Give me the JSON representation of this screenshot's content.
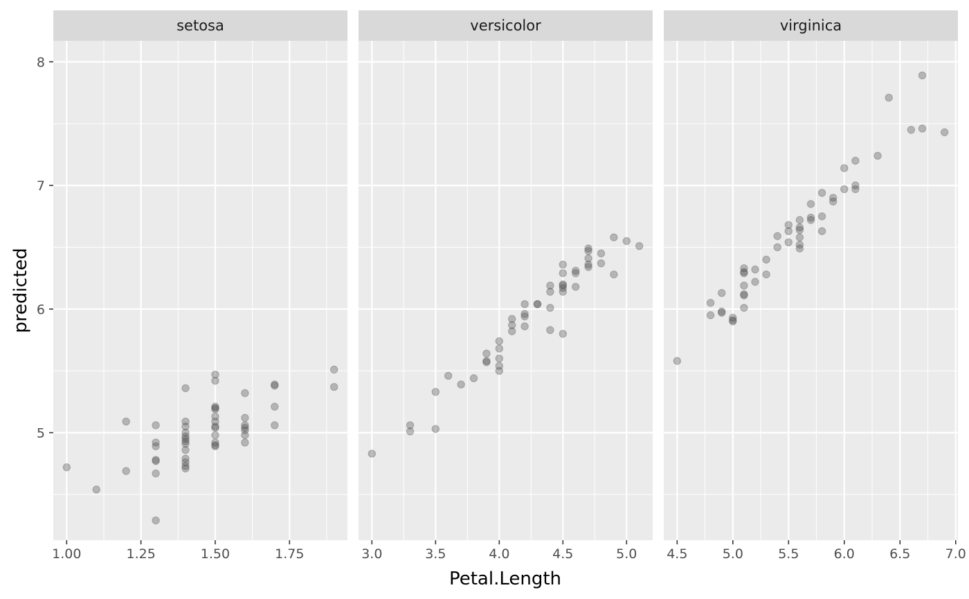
{
  "chart_data": {
    "type": "scatter",
    "xlabel": "Petal.Length",
    "ylabel": "predicted",
    "ylim": [
      4.13,
      8.17
    ],
    "y_ticks": [
      5,
      6,
      7,
      8
    ],
    "y_tick_labels": [
      "5",
      "6",
      "7",
      "8"
    ],
    "grid": true,
    "point_color": "#4d4d4d",
    "point_alpha": 0.35,
    "panel_background": "#ebebeb",
    "strip_background": "#d9d9d9",
    "panels": [
      {
        "name": "setosa",
        "xlim": [
          0.955,
          1.945
        ],
        "x_ticks": [
          1.0,
          1.25,
          1.5,
          1.75
        ],
        "x_tick_labels": [
          "1.00",
          "1.25",
          "1.50",
          "1.75"
        ],
        "points": [
          [
            1.0,
            4.72
          ],
          [
            1.1,
            4.54
          ],
          [
            1.2,
            5.09
          ],
          [
            1.2,
            4.69
          ],
          [
            1.3,
            5.06
          ],
          [
            1.3,
            4.92
          ],
          [
            1.3,
            4.89
          ],
          [
            1.3,
            4.78
          ],
          [
            1.3,
            4.77
          ],
          [
            1.3,
            4.67
          ],
          [
            1.3,
            4.29
          ],
          [
            1.4,
            5.36
          ],
          [
            1.4,
            5.09
          ],
          [
            1.4,
            5.05
          ],
          [
            1.4,
            5.0
          ],
          [
            1.4,
            4.97
          ],
          [
            1.4,
            4.95
          ],
          [
            1.4,
            4.93
          ],
          [
            1.4,
            4.91
          ],
          [
            1.4,
            4.86
          ],
          [
            1.4,
            4.79
          ],
          [
            1.4,
            4.76
          ],
          [
            1.4,
            4.73
          ],
          [
            1.4,
            4.71
          ],
          [
            1.5,
            5.47
          ],
          [
            1.5,
            5.42
          ],
          [
            1.5,
            5.21
          ],
          [
            1.5,
            5.2
          ],
          [
            1.5,
            5.19
          ],
          [
            1.5,
            5.13
          ],
          [
            1.5,
            5.09
          ],
          [
            1.5,
            5.05
          ],
          [
            1.5,
            5.04
          ],
          [
            1.5,
            4.98
          ],
          [
            1.5,
            4.92
          ],
          [
            1.5,
            4.9
          ],
          [
            1.5,
            4.89
          ],
          [
            1.6,
            5.32
          ],
          [
            1.6,
            5.12
          ],
          [
            1.6,
            5.06
          ],
          [
            1.6,
            5.04
          ],
          [
            1.6,
            5.02
          ],
          [
            1.6,
            4.98
          ],
          [
            1.6,
            4.92
          ],
          [
            1.7,
            5.39
          ],
          [
            1.7,
            5.38
          ],
          [
            1.7,
            5.21
          ],
          [
            1.7,
            5.06
          ],
          [
            1.9,
            5.51
          ],
          [
            1.9,
            5.37
          ]
        ]
      },
      {
        "name": "versicolor",
        "xlim": [
          2.895,
          5.205
        ],
        "x_ticks": [
          3.0,
          3.5,
          4.0,
          4.5,
          5.0
        ],
        "x_tick_labels": [
          "3.0",
          "3.5",
          "4.0",
          "4.5",
          "5.0"
        ],
        "points": [
          [
            3.0,
            4.83
          ],
          [
            3.3,
            5.06
          ],
          [
            3.3,
            5.01
          ],
          [
            3.5,
            5.33
          ],
          [
            3.5,
            5.03
          ],
          [
            3.6,
            5.46
          ],
          [
            3.7,
            5.39
          ],
          [
            3.8,
            5.44
          ],
          [
            3.9,
            5.64
          ],
          [
            3.9,
            5.58
          ],
          [
            3.9,
            5.57
          ],
          [
            4.0,
            5.74
          ],
          [
            4.0,
            5.68
          ],
          [
            4.0,
            5.6
          ],
          [
            4.0,
            5.54
          ],
          [
            4.0,
            5.5
          ],
          [
            4.1,
            5.92
          ],
          [
            4.1,
            5.87
          ],
          [
            4.1,
            5.82
          ],
          [
            4.2,
            6.04
          ],
          [
            4.2,
            5.96
          ],
          [
            4.2,
            5.94
          ],
          [
            4.2,
            5.86
          ],
          [
            4.3,
            6.04
          ],
          [
            4.3,
            6.04
          ],
          [
            4.4,
            6.19
          ],
          [
            4.4,
            6.14
          ],
          [
            4.4,
            6.01
          ],
          [
            4.4,
            5.83
          ],
          [
            4.5,
            6.36
          ],
          [
            4.5,
            6.29
          ],
          [
            4.5,
            6.2
          ],
          [
            4.5,
            6.19
          ],
          [
            4.5,
            6.17
          ],
          [
            4.5,
            6.14
          ],
          [
            4.5,
            5.8
          ],
          [
            4.6,
            6.31
          ],
          [
            4.6,
            6.29
          ],
          [
            4.6,
            6.18
          ],
          [
            4.7,
            6.49
          ],
          [
            4.7,
            6.47
          ],
          [
            4.7,
            6.41
          ],
          [
            4.7,
            6.36
          ],
          [
            4.7,
            6.34
          ],
          [
            4.8,
            6.45
          ],
          [
            4.8,
            6.37
          ],
          [
            4.9,
            6.58
          ],
          [
            4.9,
            6.28
          ],
          [
            5.0,
            6.55
          ],
          [
            5.1,
            6.51
          ]
        ]
      },
      {
        "name": "virginica",
        "xlim": [
          4.38,
          7.02
        ],
        "x_ticks": [
          4.5,
          5.0,
          5.5,
          6.0,
          6.5,
          7.0
        ],
        "x_tick_labels": [
          "4.5",
          "5.0",
          "5.5",
          "6.0",
          "6.5",
          "7.0"
        ],
        "points": [
          [
            4.5,
            5.58
          ],
          [
            4.8,
            6.05
          ],
          [
            4.8,
            5.95
          ],
          [
            4.9,
            6.13
          ],
          [
            4.9,
            5.98
          ],
          [
            4.9,
            5.97
          ],
          [
            5.0,
            5.93
          ],
          [
            5.0,
            5.91
          ],
          [
            5.0,
            5.9
          ],
          [
            5.1,
            6.33
          ],
          [
            5.1,
            6.3
          ],
          [
            5.1,
            6.29
          ],
          [
            5.1,
            6.19
          ],
          [
            5.1,
            6.12
          ],
          [
            5.1,
            6.11
          ],
          [
            5.1,
            6.01
          ],
          [
            5.2,
            6.32
          ],
          [
            5.2,
            6.22
          ],
          [
            5.3,
            6.4
          ],
          [
            5.3,
            6.28
          ],
          [
            5.4,
            6.59
          ],
          [
            5.4,
            6.5
          ],
          [
            5.5,
            6.68
          ],
          [
            5.5,
            6.63
          ],
          [
            5.5,
            6.54
          ],
          [
            5.6,
            6.72
          ],
          [
            5.6,
            6.66
          ],
          [
            5.6,
            6.64
          ],
          [
            5.6,
            6.58
          ],
          [
            5.6,
            6.52
          ],
          [
            5.6,
            6.49
          ],
          [
            5.7,
            6.85
          ],
          [
            5.7,
            6.74
          ],
          [
            5.7,
            6.72
          ],
          [
            5.8,
            6.94
          ],
          [
            5.8,
            6.75
          ],
          [
            5.8,
            6.63
          ],
          [
            5.9,
            6.9
          ],
          [
            5.9,
            6.87
          ],
          [
            6.0,
            7.14
          ],
          [
            6.0,
            6.97
          ],
          [
            6.1,
            7.2
          ],
          [
            6.1,
            7.0
          ],
          [
            6.1,
            6.97
          ],
          [
            6.3,
            7.24
          ],
          [
            6.4,
            7.71
          ],
          [
            6.6,
            7.45
          ],
          [
            6.7,
            7.89
          ],
          [
            6.7,
            7.46
          ],
          [
            6.9,
            7.43
          ]
        ]
      }
    ]
  }
}
